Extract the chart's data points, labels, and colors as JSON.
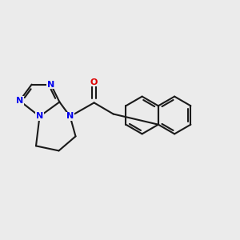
{
  "bg": "#ebebeb",
  "bc": "#1a1a1a",
  "Nc": "#0000ee",
  "Oc": "#dd0000",
  "lw": 1.5,
  "fs": 8.0,
  "figsize": [
    3.0,
    3.0
  ],
  "dpi": 100,
  "xlim": [
    0.5,
    10.5
  ],
  "ylim": [
    3.2,
    8.8
  ]
}
